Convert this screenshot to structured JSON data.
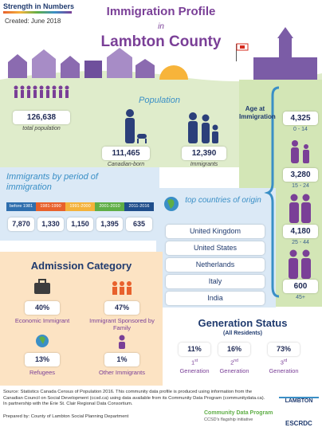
{
  "header": {
    "logo": "Strength in Numbers",
    "created": "Created: June 2018",
    "title": "Immigration Profile",
    "connector": "in",
    "place": "Lambton County"
  },
  "population": {
    "heading": "Population",
    "total": {
      "value": "126,638",
      "label": "total population"
    },
    "canadian_born": {
      "value": "111,465",
      "label": "Canadian-born"
    },
    "immigrants": {
      "value": "12,390",
      "label": "Immigrants"
    }
  },
  "age_at_immigration": {
    "heading": "Age at Immigration",
    "groups": [
      {
        "value": "4,325",
        "label": "0 - 14"
      },
      {
        "value": "3,280",
        "label": "15 - 24"
      },
      {
        "value": "4,180",
        "label": "25 - 44"
      },
      {
        "value": "600",
        "label": "45+"
      }
    ]
  },
  "period": {
    "heading": "Immigrants by period of immigration",
    "periods": [
      {
        "label": "before 1981",
        "value": "7,870",
        "color": "#2f6fae"
      },
      {
        "label": "1981-1990",
        "value": "1,330",
        "color": "#e8612c"
      },
      {
        "label": "1991-2000",
        "value": "1,150",
        "color": "#f4b23b"
      },
      {
        "label": "2001-2010",
        "value": "1,395",
        "color": "#5fae46"
      },
      {
        "label": "2011-2016",
        "value": "635",
        "color": "#1f4e8c"
      }
    ]
  },
  "countries": {
    "heading": "top countries of origin",
    "list": [
      "United Kingdom",
      "United States",
      "Netherlands",
      "Italy",
      "India"
    ]
  },
  "admission": {
    "heading": "Admission Category",
    "items": [
      {
        "value": "40%",
        "label": "Economic Immigrant"
      },
      {
        "value": "47%",
        "label": "Immigrant Sponsored by Family"
      },
      {
        "value": "13%",
        "label": "Refugees"
      },
      {
        "value": "1%",
        "label": "Other Immigrants"
      }
    ]
  },
  "generation": {
    "heading": "Generation Status",
    "subheading": "(All Residents)",
    "items": [
      {
        "value": "11%",
        "ordinal": "1",
        "suffix": "st",
        "label": "Generation"
      },
      {
        "value": "16%",
        "ordinal": "2",
        "suffix": "nd",
        "label": "Generation"
      },
      {
        "value": "73%",
        "ordinal": "3",
        "suffix": "rd",
        "label": "Generation"
      }
    ]
  },
  "footer": {
    "source": "Source: Statistics Canada Census of Population 2016. This community data profile is produced using information from the Canadian Council on Social Development (ccsd.ca) using data available from its Community Data Program (communitydata.ca). In partnership with the Erie St. Clair Regional Data Consortium.",
    "prepared": "Prepared by: County of Lambton Social Planning Department",
    "county_logo": "LAMBTON",
    "cdp": "Community Data Program",
    "cdp_tagline": "CCSD's flagship initiative",
    "consortium": "ESCRDC"
  }
}
